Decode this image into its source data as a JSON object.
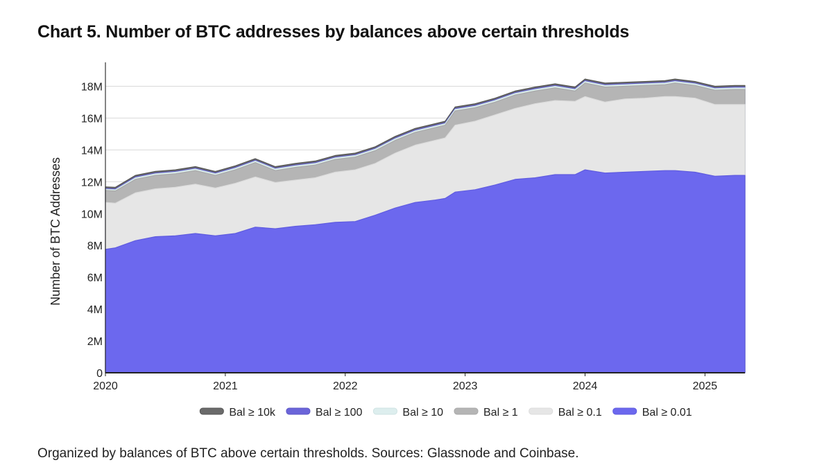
{
  "title": "Chart 5. Number of BTC addresses by balances above certain thresholds",
  "caption": "Organized by balances of BTC above certain thresholds. Sources: Glassnode and Coinbase.",
  "chart_data": {
    "type": "area",
    "stacked": false,
    "ylabel": "Number of BTC Addresses",
    "xlabel": "",
    "x_ticks": [
      "2020",
      "2021",
      "2022",
      "2023",
      "2024",
      "2025"
    ],
    "y_ticks": [
      "0",
      "2M",
      "4M",
      "6M",
      "8M",
      "10M",
      "12M",
      "14M",
      "16M",
      "18M"
    ],
    "ylim": [
      0,
      19500000
    ],
    "xlim": [
      "2020-01",
      "2025-05"
    ],
    "grid": "horizontal",
    "legend_position": "bottom",
    "x": [
      "2020-01",
      "2020-02",
      "2020-04",
      "2020-06",
      "2020-08",
      "2020-10",
      "2020-12",
      "2021-02",
      "2021-04",
      "2021-06",
      "2021-08",
      "2021-10",
      "2021-12",
      "2022-02",
      "2022-04",
      "2022-06",
      "2022-08",
      "2022-10",
      "2022-11",
      "2022-12",
      "2023-02",
      "2023-04",
      "2023-06",
      "2023-08",
      "2023-10",
      "2023-12",
      "2024-01",
      "2024-03",
      "2024-05",
      "2024-07",
      "2024-09",
      "2024-10",
      "2024-12",
      "2025-02",
      "2025-04",
      "2025-05"
    ],
    "series": [
      {
        "name": "Bal ≥ 10k",
        "color": "#6b6b6b",
        "stroke": "#555555",
        "values": [
          11680000,
          11650000,
          12400000,
          12650000,
          12750000,
          12950000,
          12650000,
          13000000,
          13450000,
          12950000,
          13150000,
          13300000,
          13650000,
          13800000,
          14200000,
          14850000,
          15350000,
          15650000,
          15800000,
          16700000,
          16900000,
          17250000,
          17700000,
          17950000,
          18150000,
          17950000,
          18450000,
          18200000,
          18250000,
          18300000,
          18350000,
          18450000,
          18300000,
          18000000,
          18050000,
          18050000
        ]
      },
      {
        "name": "Bal ≥ 100",
        "color": "#6b65d9",
        "stroke": "#5c57c6",
        "values": [
          11580000,
          11550000,
          12300000,
          12550000,
          12650000,
          12850000,
          12550000,
          12900000,
          13350000,
          12850000,
          13050000,
          13200000,
          13550000,
          13700000,
          14100000,
          14750000,
          15250000,
          15550000,
          15700000,
          16600000,
          16800000,
          17150000,
          17600000,
          17850000,
          18050000,
          17850000,
          18350000,
          18100000,
          18150000,
          18200000,
          18250000,
          18350000,
          18200000,
          17900000,
          17950000,
          17950000
        ]
      },
      {
        "name": "Bal ≥ 10",
        "color": "#ddeeee",
        "stroke": "#cfe3e3",
        "values": [
          11530000,
          11500000,
          12250000,
          12500000,
          12600000,
          12800000,
          12500000,
          12850000,
          13300000,
          12800000,
          13000000,
          13150000,
          13500000,
          13650000,
          14050000,
          14700000,
          15200000,
          15500000,
          15650000,
          16550000,
          16750000,
          17100000,
          17550000,
          17800000,
          18000000,
          17800000,
          18300000,
          18050000,
          18100000,
          18150000,
          18200000,
          18300000,
          18150000,
          17850000,
          17900000,
          17900000
        ]
      },
      {
        "name": "Bal ≥ 1",
        "color": "#b5b5b5",
        "stroke": "#a8a8a8",
        "values": [
          11450000,
          11420000,
          12150000,
          12400000,
          12500000,
          12700000,
          12400000,
          12750000,
          13200000,
          12700000,
          12900000,
          13050000,
          13400000,
          13550000,
          13950000,
          14600000,
          15100000,
          15400000,
          15550000,
          16450000,
          16650000,
          17000000,
          17450000,
          17700000,
          17900000,
          17700000,
          18200000,
          17950000,
          18000000,
          18050000,
          18100000,
          18200000,
          18050000,
          17750000,
          17800000,
          17800000
        ]
      },
      {
        "name": "Bal ≥ 0.1",
        "color": "#e6e6e6",
        "stroke": "#dcdcdc",
        "values": [
          10700000,
          10650000,
          11300000,
          11550000,
          11650000,
          11850000,
          11600000,
          11900000,
          12300000,
          11950000,
          12100000,
          12250000,
          12600000,
          12750000,
          13150000,
          13800000,
          14300000,
          14600000,
          14750000,
          15550000,
          15800000,
          16200000,
          16600000,
          16900000,
          17100000,
          17050000,
          17350000,
          17000000,
          17200000,
          17250000,
          17350000,
          17350000,
          17250000,
          16850000,
          16850000,
          16850000
        ]
      },
      {
        "name": "Bal ≥ 0.01",
        "color": "#6c68ee",
        "stroke": "#5f5bdf",
        "values": [
          7750000,
          7850000,
          8300000,
          8550000,
          8600000,
          8750000,
          8600000,
          8750000,
          9150000,
          9050000,
          9200000,
          9300000,
          9450000,
          9500000,
          9900000,
          10350000,
          10700000,
          10850000,
          10950000,
          11350000,
          11500000,
          11800000,
          12150000,
          12250000,
          12450000,
          12450000,
          12750000,
          12550000,
          12600000,
          12650000,
          12700000,
          12700000,
          12600000,
          12350000,
          12400000,
          12400000
        ]
      }
    ]
  }
}
